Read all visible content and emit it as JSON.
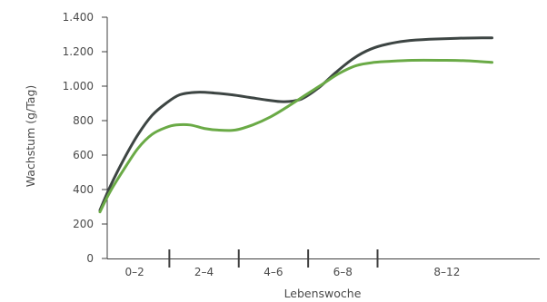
{
  "chart_data": {
    "type": "line",
    "title": "",
    "xlabel": "Lebenswoche",
    "ylabel": "Wachstum (g/Tag)",
    "categories": [
      "0–2",
      "2–4",
      "4–6",
      "6–8",
      "8–12"
    ],
    "category_bounds": [
      0,
      2,
      4,
      6,
      8,
      12
    ],
    "ylim": [
      0,
      1400
    ],
    "yticks": [
      0,
      200,
      400,
      600,
      800,
      1000,
      1200,
      1400
    ],
    "ytick_labels": [
      "0",
      "200",
      "400",
      "600",
      "800",
      "1.000",
      "1.200",
      "1.400"
    ],
    "grid": false,
    "legend": "none",
    "series": [
      {
        "color": "#3d4543",
        "x": [
          0.0,
          0.3,
          0.7,
          1.1,
          1.5,
          1.9,
          2.3,
          2.8,
          3.3,
          3.8,
          4.3,
          4.8,
          5.3,
          5.8,
          6.3,
          6.8,
          7.3,
          7.8,
          8.3,
          8.8,
          9.5,
          10.3,
          11.0,
          11.3
        ],
        "y": [
          280,
          420,
          580,
          720,
          830,
          900,
          950,
          965,
          960,
          950,
          935,
          920,
          910,
          925,
          990,
          1080,
          1160,
          1215,
          1245,
          1262,
          1272,
          1278,
          1280,
          1280
        ]
      },
      {
        "color": "#6aaa46",
        "x": [
          0.0,
          0.3,
          0.7,
          1.1,
          1.5,
          1.9,
          2.2,
          2.6,
          3.0,
          3.4,
          3.9,
          4.4,
          4.9,
          5.4,
          5.9,
          6.4,
          6.9,
          7.4,
          7.9,
          8.4,
          9.0,
          9.8,
          10.5,
          11.0,
          11.3
        ],
        "y": [
          270,
          390,
          520,
          640,
          720,
          760,
          775,
          775,
          755,
          745,
          745,
          775,
          820,
          880,
          945,
          1010,
          1075,
          1120,
          1138,
          1145,
          1150,
          1150,
          1148,
          1142,
          1138
        ]
      }
    ]
  },
  "colors": {
    "axis": "#3f3f3f",
    "text": "#4a4a4a"
  }
}
